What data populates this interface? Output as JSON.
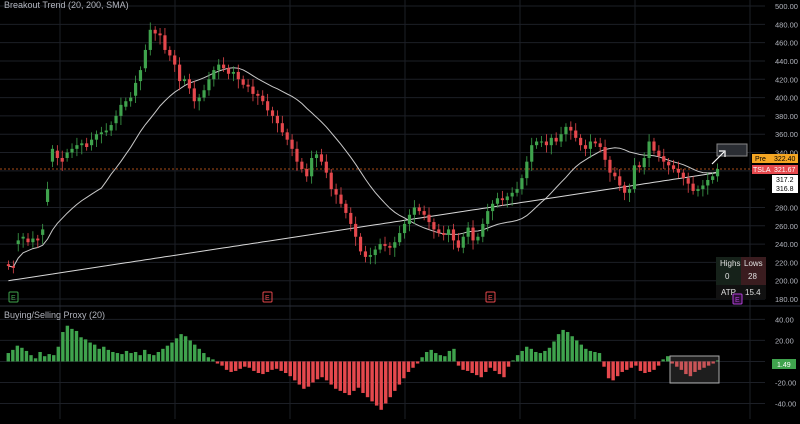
{
  "colors": {
    "background": "#000000",
    "grid": "#1c1f26",
    "axis_text": "#b2b5be",
    "up": "#3fa34d",
    "down": "#e5484d",
    "sma_fast": "#c8c8c8",
    "sma_slow": "#d8d8d8",
    "price_line": "#e0651f",
    "pre_badge": "#f5a623",
    "ticker_badge": "#e5484d",
    "proxy_badge": "#3fa34d",
    "earnings_marker": "#e5484d",
    "event_marker_green": "#3fa34d",
    "event_marker_purple": "#b23fd8"
  },
  "main_pane": {
    "title": "Breakout Trend (20, 200, SMA)",
    "y_ticks": [
      "500.00",
      "480.00",
      "460.00",
      "440.00",
      "420.00",
      "400.00",
      "380.00",
      "360.00",
      "340.00",
      "320.00",
      "300.00",
      "280.00",
      "260.00",
      "240.00",
      "220.00",
      "200.00",
      "180.00"
    ],
    "badges": {
      "pre_label": "Pre",
      "pre_value": "322.40",
      "ticker_label": "TSLA",
      "ticker_value": "321.67",
      "sma20_value": "317.2",
      "sma200_value": "316.8"
    },
    "event_markers": [
      "E",
      "E",
      "E",
      "E"
    ],
    "stats_table": {
      "highs_label": "Highs",
      "lows_label": "Lows",
      "highs_value": "0",
      "lows_value": "28",
      "atp_label": "ATP",
      "atp_value": "15.4"
    }
  },
  "proxy_pane": {
    "title": "Buying/Selling Proxy (20)",
    "y_ticks": [
      "40.00",
      "20.00",
      "0.00",
      "-20.00",
      "-40.00"
    ],
    "last_value": "1.49"
  },
  "chart_data": [
    {
      "type": "candlestick",
      "title": "Breakout Trend (20, 200, SMA)",
      "symbol": "TSLA",
      "ylim": [
        180,
        500
      ],
      "series": [
        {
          "name": "price",
          "close": [
            216,
            214,
            244,
            248,
            242,
            246,
            244,
            256,
            300,
            344,
            334,
            330,
            340,
            344,
            348,
            350,
            346,
            354,
            360,
            362,
            364,
            370,
            380,
            392,
            396,
            400,
            416,
            430,
            452,
            474,
            470,
            468,
            452,
            446,
            436,
            418,
            420,
            410,
            396,
            400,
            408,
            420,
            430,
            436,
            432,
            426,
            428,
            420,
            414,
            412,
            404,
            402,
            396,
            386,
            380,
            372,
            362,
            354,
            344,
            330,
            322,
            314,
            334,
            338,
            330,
            318,
            300,
            294,
            284,
            274,
            262,
            248,
            232,
            226,
            228,
            234,
            240,
            238,
            236,
            242,
            252,
            262,
            272,
            280,
            276,
            272,
            264,
            256,
            252,
            250,
            256,
            244,
            236,
            248,
            258,
            244,
            248,
            262,
            276,
            284,
            290,
            288,
            292,
            296,
            300,
            312,
            330,
            348,
            352,
            352,
            348,
            356,
            352,
            360,
            368,
            364,
            356,
            348,
            344,
            352,
            350,
            346,
            332,
            318,
            314,
            304,
            296,
            300,
            326,
            324,
            334,
            352,
            342,
            336,
            330,
            326,
            322,
            318,
            312,
            306,
            298,
            300,
            304,
            310,
            314,
            322
          ],
          "open": [
            218,
            216,
            240,
            246,
            246,
            242,
            246,
            250,
            286,
            330,
            342,
            334,
            334,
            340,
            344,
            348,
            350,
            348,
            354,
            360,
            362,
            364,
            372,
            380,
            390,
            396,
            402,
            418,
            432,
            452,
            474,
            470,
            468,
            452,
            446,
            436,
            418,
            420,
            410,
            396,
            400,
            408,
            420,
            430,
            436,
            432,
            426,
            428,
            420,
            414,
            412,
            404,
            402,
            396,
            386,
            380,
            372,
            362,
            354,
            344,
            330,
            322,
            314,
            334,
            338,
            330,
            318,
            300,
            294,
            284,
            274,
            262,
            248,
            232,
            226,
            228,
            234,
            240,
            238,
            236,
            242,
            252,
            262,
            272,
            280,
            276,
            272,
            264,
            256,
            252,
            250,
            256,
            244,
            236,
            248,
            258,
            244,
            248,
            262,
            276,
            284,
            290,
            288,
            292,
            296,
            300,
            312,
            330,
            348,
            352,
            352,
            348,
            356,
            352,
            360,
            368,
            364,
            356,
            348,
            344,
            352,
            350,
            346,
            332,
            318,
            314,
            304,
            296,
            300,
            326,
            324,
            334,
            352,
            342,
            336,
            330,
            326,
            322,
            318,
            312,
            306,
            298,
            300,
            304,
            310,
            314
          ]
        },
        {
          "name": "SMA 20",
          "values": []
        },
        {
          "name": "SMA 200",
          "values": []
        }
      ]
    },
    {
      "type": "bar",
      "title": "Buying/Selling Proxy (20)",
      "ylim": [
        -50,
        48
      ],
      "values": [
        8,
        11,
        15,
        13,
        10,
        6,
        3,
        9,
        5,
        7,
        6,
        14,
        28,
        34,
        31,
        29,
        23,
        21,
        18,
        16,
        12,
        14,
        11,
        9,
        8,
        7,
        10,
        8,
        9,
        6,
        11,
        7,
        6,
        9,
        12,
        15,
        18,
        22,
        26,
        24,
        20,
        16,
        12,
        8,
        4,
        2,
        -2,
        -4,
        -8,
        -10,
        -9,
        -7,
        -5,
        -6,
        -9,
        -11,
        -12,
        -10,
        -8,
        -7,
        -9,
        -11,
        -14,
        -18,
        -22,
        -26,
        -24,
        -20,
        -17,
        -15,
        -18,
        -22,
        -26,
        -28,
        -30,
        -32,
        -28,
        -25,
        -30,
        -34,
        -38,
        -42,
        -46,
        -40,
        -34,
        -28,
        -22,
        -16,
        -10,
        -6,
        -2,
        4,
        9,
        11,
        8,
        6,
        5,
        10,
        12,
        -4,
        -8,
        -9,
        -11,
        -13,
        -15,
        -10,
        -6,
        -9,
        -12,
        -15,
        -5,
        1,
        6,
        10,
        14,
        12,
        9,
        8,
        10,
        13,
        19,
        26,
        30,
        28,
        24,
        20,
        16,
        12,
        10,
        9,
        8,
        -5,
        -16,
        -18,
        -14,
        -10,
        -8,
        -6,
        -4,
        -9,
        -11,
        -10,
        -8,
        -4,
        2,
        5,
        -2,
        -5,
        -8,
        -12,
        -14,
        -10,
        -8,
        -6,
        -4,
        -2,
        1
      ]
    }
  ]
}
